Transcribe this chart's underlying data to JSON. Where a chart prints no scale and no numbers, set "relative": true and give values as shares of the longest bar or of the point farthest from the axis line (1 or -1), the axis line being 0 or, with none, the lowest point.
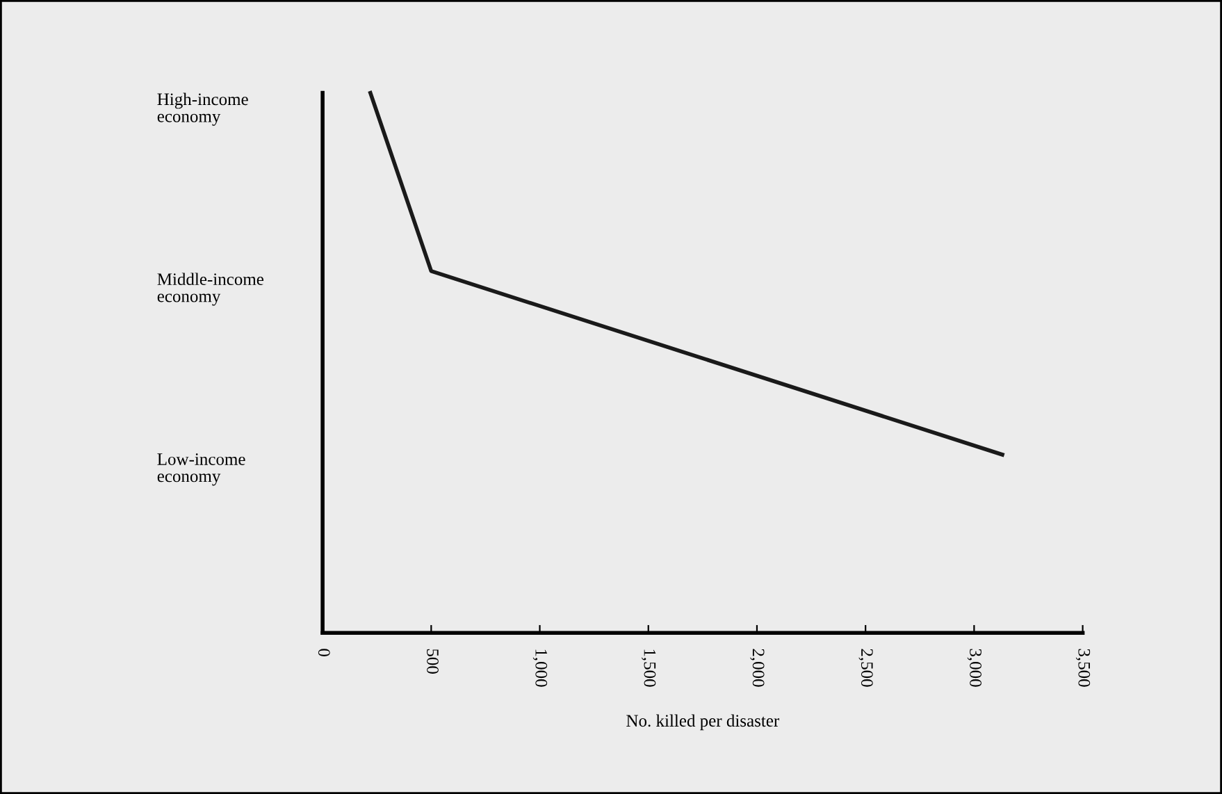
{
  "chart_data": {
    "type": "line",
    "x": [
      220,
      500,
      3130
    ],
    "values": [
      1,
      0.67,
      0.33
    ],
    "relative": true,
    "color": "#1a1a1a",
    "line_style": "solid",
    "xlabel": "No. killed per disaster",
    "xlim": [
      0,
      3500
    ],
    "xticks": [
      0,
      500,
      {
        "value": 1000,
        "label": "1,000"
      },
      {
        "value": 1500,
        "label": "1,500"
      },
      {
        "value": 2000,
        "label": "2,000"
      },
      {
        "value": 2500,
        "label": "2,500"
      },
      {
        "value": 3000,
        "label": "3,000"
      },
      {
        "value": 3500,
        "label": "3,500"
      }
    ],
    "annotations": [
      "High-income economy",
      "Middle-income economy",
      "Low-income economy"
    ],
    "grid": false,
    "legend": false
  }
}
